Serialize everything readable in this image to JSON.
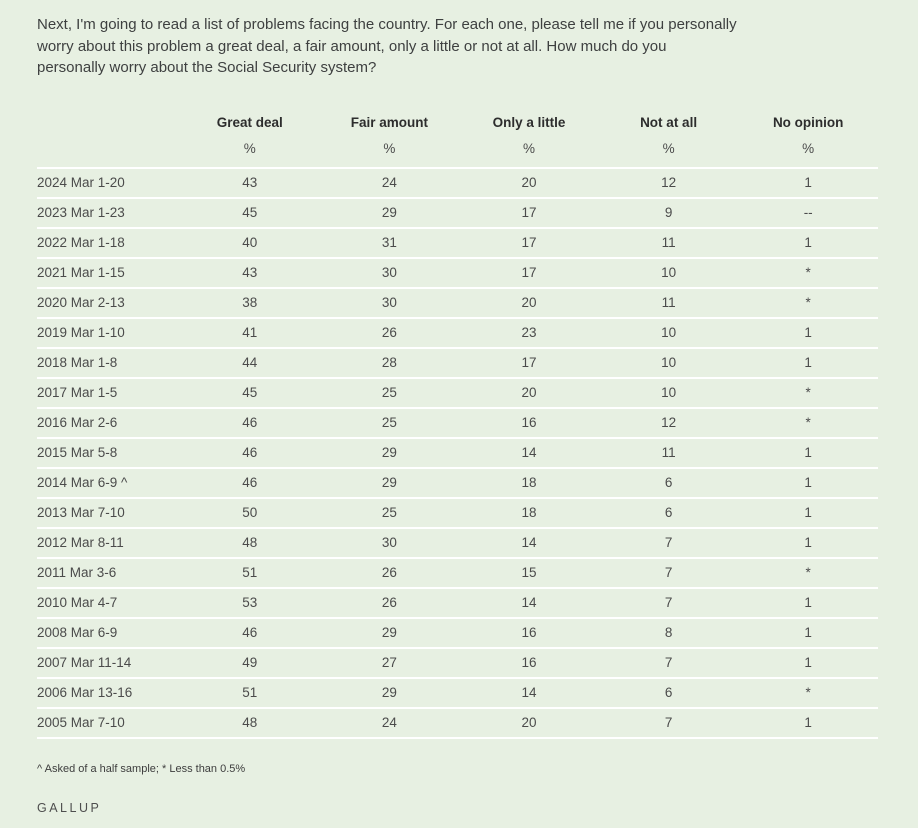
{
  "colors": {
    "background": "#e7f0e2",
    "row_separator": "#ffffff",
    "question_text": "#3e4040",
    "header_text": "#2d2d2d",
    "body_text": "#4b4b4b"
  },
  "question": "Next, I'm going to read a list of problems facing the country. For each one, please tell me if you personally worry about this problem a great deal, a fair amount, only a little or not at all. How much do you personally worry about the Social Security system?",
  "table": {
    "columns": [
      "Great deal",
      "Fair amount",
      "Only a little",
      "Not at all",
      "No opinion"
    ],
    "units": [
      "%",
      "%",
      "%",
      "%",
      "%"
    ],
    "rows": [
      {
        "date": "2024 Mar 1-20",
        "values": [
          "43",
          "24",
          "20",
          "12",
          "1"
        ]
      },
      {
        "date": "2023 Mar 1-23",
        "values": [
          "45",
          "29",
          "17",
          "9",
          "--"
        ]
      },
      {
        "date": "2022 Mar 1-18",
        "values": [
          "40",
          "31",
          "17",
          "11",
          "1"
        ]
      },
      {
        "date": "2021 Mar 1-15",
        "values": [
          "43",
          "30",
          "17",
          "10",
          "*"
        ]
      },
      {
        "date": "2020 Mar 2-13",
        "values": [
          "38",
          "30",
          "20",
          "11",
          "*"
        ]
      },
      {
        "date": "2019 Mar 1-10",
        "values": [
          "41",
          "26",
          "23",
          "10",
          "1"
        ]
      },
      {
        "date": "2018 Mar 1-8",
        "values": [
          "44",
          "28",
          "17",
          "10",
          "1"
        ]
      },
      {
        "date": "2017 Mar 1-5",
        "values": [
          "45",
          "25",
          "20",
          "10",
          "*"
        ]
      },
      {
        "date": "2016 Mar 2-6",
        "values": [
          "46",
          "25",
          "16",
          "12",
          "*"
        ]
      },
      {
        "date": "2015 Mar 5-8",
        "values": [
          "46",
          "29",
          "14",
          "11",
          "1"
        ]
      },
      {
        "date": "2014 Mar 6-9 ^",
        "values": [
          "46",
          "29",
          "18",
          "6",
          "1"
        ]
      },
      {
        "date": "2013 Mar 7-10",
        "values": [
          "50",
          "25",
          "18",
          "6",
          "1"
        ]
      },
      {
        "date": "2012 Mar 8-11",
        "values": [
          "48",
          "30",
          "14",
          "7",
          "1"
        ]
      },
      {
        "date": "2011 Mar 3-6",
        "values": [
          "51",
          "26",
          "15",
          "7",
          "*"
        ]
      },
      {
        "date": "2010 Mar 4-7",
        "values": [
          "53",
          "26",
          "14",
          "7",
          "1"
        ]
      },
      {
        "date": "2008 Mar 6-9",
        "values": [
          "46",
          "29",
          "16",
          "8",
          "1"
        ]
      },
      {
        "date": "2007 Mar 11-14",
        "values": [
          "49",
          "27",
          "16",
          "7",
          "1"
        ]
      },
      {
        "date": "2006 Mar 13-16",
        "values": [
          "51",
          "29",
          "14",
          "6",
          "*"
        ]
      },
      {
        "date": "2005 Mar 7-10",
        "values": [
          "48",
          "24",
          "20",
          "7",
          "1"
        ]
      }
    ]
  },
  "footnote": "^ Asked of a half sample; * Less than 0.5%",
  "brand": "GALLUP",
  "chart_data": {
    "type": "table",
    "title": "How much do you personally worry about the Social Security system?",
    "categories": [
      "2024 Mar 1-20",
      "2023 Mar 1-23",
      "2022 Mar 1-18",
      "2021 Mar 1-15",
      "2020 Mar 2-13",
      "2019 Mar 1-10",
      "2018 Mar 1-8",
      "2017 Mar 1-5",
      "2016 Mar 2-6",
      "2015 Mar 5-8",
      "2014 Mar 6-9 ^",
      "2013 Mar 7-10",
      "2012 Mar 8-11",
      "2011 Mar 3-6",
      "2010 Mar 4-7",
      "2008 Mar 6-9",
      "2007 Mar 11-14",
      "2006 Mar 13-16",
      "2005 Mar 7-10"
    ],
    "unit": "%",
    "series": [
      {
        "name": "Great deal",
        "values": [
          43,
          45,
          40,
          43,
          38,
          41,
          44,
          45,
          46,
          46,
          46,
          50,
          48,
          51,
          53,
          46,
          49,
          51,
          48
        ]
      },
      {
        "name": "Fair amount",
        "values": [
          24,
          29,
          31,
          30,
          30,
          26,
          28,
          25,
          25,
          29,
          29,
          25,
          30,
          26,
          26,
          29,
          27,
          29,
          24
        ]
      },
      {
        "name": "Only a little",
        "values": [
          20,
          17,
          17,
          17,
          20,
          23,
          17,
          20,
          16,
          14,
          18,
          18,
          14,
          15,
          14,
          16,
          16,
          14,
          20
        ]
      },
      {
        "name": "Not at all",
        "values": [
          12,
          9,
          11,
          10,
          11,
          10,
          10,
          10,
          12,
          11,
          6,
          6,
          7,
          7,
          7,
          8,
          7,
          6,
          7
        ]
      },
      {
        "name": "No opinion",
        "values": [
          "1",
          "--",
          "1",
          "*",
          "*",
          "1",
          "1",
          "*",
          "*",
          "1",
          "1",
          "1",
          "1",
          "*",
          "1",
          "1",
          "1",
          "*",
          "1"
        ]
      }
    ],
    "annotations": [
      "^ Asked of a half sample",
      "* Less than 0.5%"
    ]
  }
}
